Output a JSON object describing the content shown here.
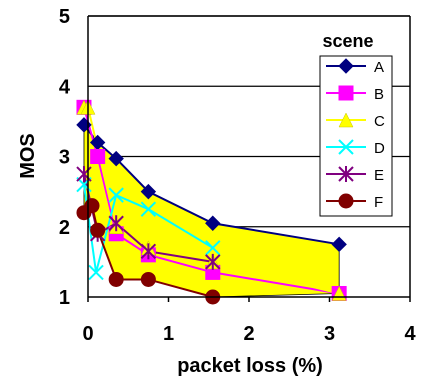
{
  "chart_data": {
    "type": "line",
    "xlabel": "packet loss (%)",
    "ylabel": "MOS",
    "xlim": [
      0,
      4
    ],
    "ylim": [
      1,
      5
    ],
    "xticks": [
      "0",
      "1",
      "2",
      "3",
      "4"
    ],
    "yticks": [
      "1",
      "2",
      "3",
      "4",
      "5"
    ],
    "grid": "horizontal",
    "legend_title": "scene",
    "legend_position": "right",
    "area_fill_color": "#ffff00",
    "series": [
      {
        "name": "A",
        "color": "#000080",
        "marker": "diamond",
        "x": [
          -0.05,
          0.12,
          0.35,
          0.75,
          1.55,
          3.12
        ],
        "y": [
          3.45,
          3.2,
          2.97,
          2.5,
          2.05,
          1.75
        ]
      },
      {
        "name": "B",
        "color": "#ff00ff",
        "marker": "square",
        "x": [
          -0.05,
          0.12,
          0.35,
          0.75,
          1.55,
          3.12
        ],
        "y": [
          3.7,
          3.0,
          1.9,
          1.6,
          1.35,
          1.05
        ]
      },
      {
        "name": "C",
        "color": "#ffff00",
        "marker": "triangle",
        "x": [
          -0.05,
          0.0,
          0.35,
          0.75,
          1.55,
          3.12
        ],
        "y": [
          3.7,
          3.7,
          2.0,
          1.7,
          1.5,
          1.05
        ]
      },
      {
        "name": "D",
        "color": "#00ffff",
        "marker": "x",
        "x": [
          -0.05,
          0.1,
          0.35,
          0.75,
          1.55
        ],
        "y": [
          2.6,
          1.35,
          2.45,
          2.25,
          1.7
        ]
      },
      {
        "name": "E",
        "color": "#800080",
        "marker": "star",
        "x": [
          -0.05,
          0.12,
          0.35,
          0.75,
          1.55
        ],
        "y": [
          2.75,
          1.9,
          2.05,
          1.65,
          1.5
        ]
      },
      {
        "name": "F",
        "color": "#800000",
        "marker": "circle",
        "x": [
          -0.05,
          0.05,
          0.12,
          0.35,
          0.75,
          1.55
        ],
        "y": [
          2.2,
          2.3,
          1.95,
          1.25,
          1.25,
          1.0
        ]
      }
    ]
  }
}
